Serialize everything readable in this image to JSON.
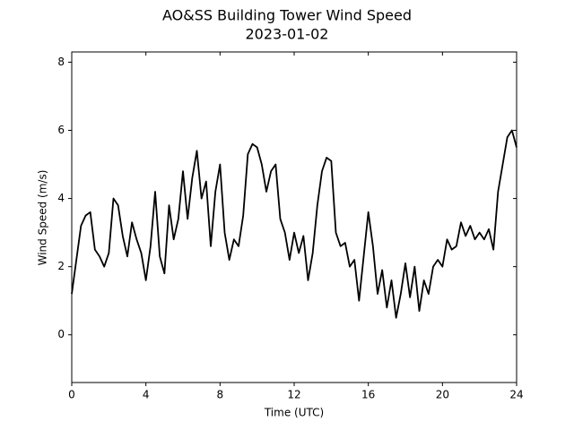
{
  "chart_data": {
    "type": "line",
    "title": "AO&SS Building Tower Wind Speed",
    "subtitle": "2023-01-02",
    "x_label": "Time (UTC)",
    "y_label": "Wind Speed (m/s)",
    "xlim": [
      0,
      24
    ],
    "xticks": [
      0,
      4,
      8,
      12,
      16,
      20,
      24
    ],
    "ylim": [
      -1.4,
      8.3
    ],
    "yticks": [
      0,
      2,
      4,
      6,
      8
    ],
    "series": [
      {
        "color": "#000000",
        "x": [
          0,
          0.25,
          0.5,
          0.75,
          1,
          1.25,
          1.5,
          1.75,
          2,
          2.25,
          2.5,
          2.75,
          3,
          3.25,
          3.5,
          3.75,
          4,
          4.25,
          4.5,
          4.75,
          5,
          5.25,
          5.5,
          5.75,
          6,
          6.25,
          6.5,
          6.75,
          7,
          7.25,
          7.5,
          7.75,
          8,
          8.25,
          8.5,
          8.75,
          9,
          9.25,
          9.5,
          9.75,
          10,
          10.25,
          10.5,
          10.75,
          11,
          11.25,
          11.5,
          11.75,
          12,
          12.25,
          12.5,
          12.75,
          13,
          13.25,
          13.5,
          13.75,
          14,
          14.25,
          14.5,
          14.75,
          15,
          15.25,
          15.5,
          15.75,
          16,
          16.25,
          16.5,
          16.75,
          17,
          17.25,
          17.5,
          17.75,
          18,
          18.25,
          18.5,
          18.75,
          19,
          19.25,
          19.5,
          19.75,
          20,
          20.25,
          20.5,
          20.75,
          21,
          21.25,
          21.5,
          21.75,
          22,
          22.25,
          22.5,
          22.75,
          23,
          23.25,
          23.5,
          23.75,
          24
        ],
        "values": [
          1.2,
          2.2,
          3.2,
          3.5,
          3.6,
          2.5,
          2.3,
          2.0,
          2.4,
          4.0,
          3.8,
          2.9,
          2.3,
          3.3,
          2.8,
          2.4,
          1.6,
          2.6,
          4.2,
          2.3,
          1.8,
          3.8,
          2.8,
          3.4,
          4.8,
          3.4,
          4.6,
          5.4,
          4.0,
          4.5,
          2.6,
          4.2,
          5.0,
          3.0,
          2.2,
          2.8,
          2.6,
          3.5,
          5.3,
          5.6,
          5.5,
          5.0,
          4.2,
          4.8,
          5.0,
          3.4,
          3.0,
          2.2,
          3.0,
          2.4,
          2.9,
          1.6,
          2.4,
          3.8,
          4.8,
          5.2,
          5.1,
          3.0,
          2.6,
          2.7,
          2.0,
          2.2,
          1.0,
          2.3,
          3.6,
          2.6,
          1.2,
          1.9,
          0.8,
          1.6,
          0.5,
          1.2,
          2.1,
          1.1,
          2.0,
          0.7,
          1.6,
          1.2,
          2.0,
          2.2,
          2.0,
          2.8,
          2.5,
          2.6,
          3.3,
          2.9,
          3.2,
          2.8,
          3.0,
          2.8,
          3.1,
          2.5,
          4.2,
          5.0,
          5.8,
          6.0,
          5.5
        ]
      }
    ]
  }
}
